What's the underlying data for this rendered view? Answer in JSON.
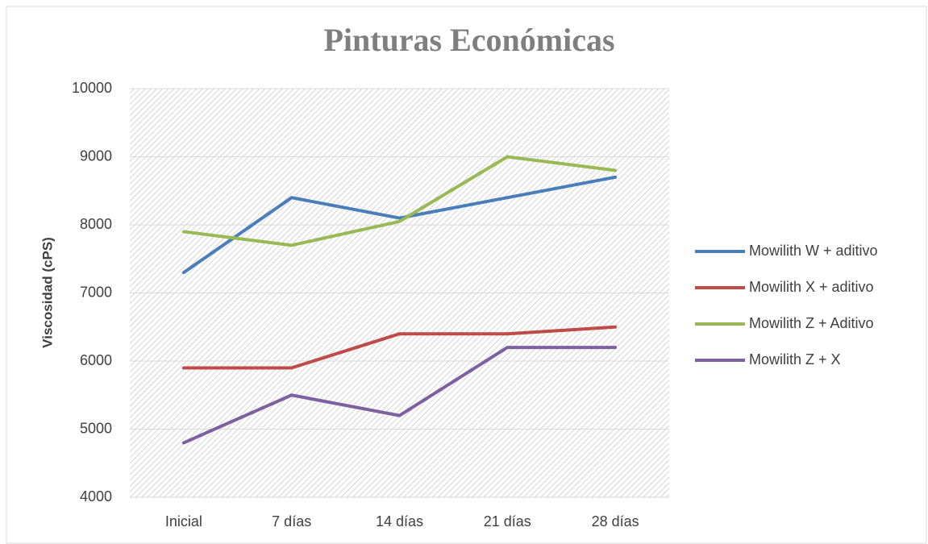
{
  "chart_data": {
    "type": "line",
    "title": "Pinturas Económicas",
    "y_label": "Viscosidad (cPS)",
    "categories": [
      "Inicial",
      "7 días",
      "14 días",
      "21 días",
      "28 días"
    ],
    "series": [
      {
        "name": "Mowilith W + aditivo",
        "color": "#4a7ebb",
        "values": [
          7300,
          8400,
          8100,
          8400,
          8700
        ]
      },
      {
        "name": "Mowilith X + aditivo",
        "color": "#be4b48",
        "values": [
          5900,
          5900,
          6400,
          6400,
          6500
        ]
      },
      {
        "name": "Mowilith Z + Aditivo",
        "color": "#98b954",
        "values": [
          7900,
          7700,
          8050,
          9000,
          8800
        ]
      },
      {
        "name": "Mowilith Z + X",
        "color": "#7d60a0",
        "values": [
          4800,
          5500,
          5200,
          6200,
          6200
        ]
      }
    ],
    "ylim": [
      4000,
      10000
    ],
    "yticks": [
      4000,
      5000,
      6000,
      7000,
      8000,
      9000,
      10000
    ],
    "grid": true,
    "legend": "right"
  }
}
